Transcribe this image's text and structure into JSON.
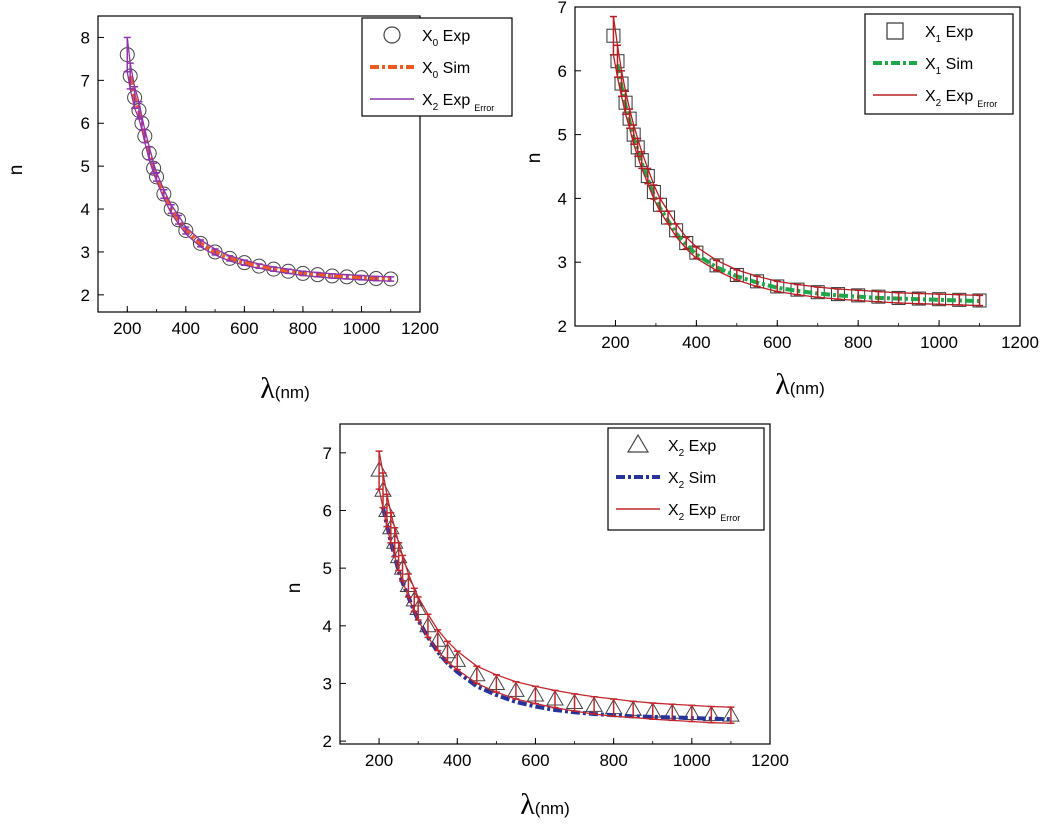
{
  "chart_data": [
    {
      "type": "scatter",
      "xlabel": "λ (nm)",
      "ylabel": "n",
      "xlim": [
        100,
        1200
      ],
      "ylim": [
        1.6,
        8.5
      ],
      "xticks": [
        200,
        400,
        600,
        800,
        1000,
        1200
      ],
      "yticks": [
        2,
        3,
        4,
        5,
        6,
        7,
        8
      ],
      "legend_position": "top-right",
      "legend": [
        {
          "base": "X",
          "sub": "0",
          "text": " Exp",
          "suffix": "",
          "marker": "circle",
          "color": "#444444"
        },
        {
          "base": "X",
          "sub": "0",
          "text": " Sim",
          "suffix": "",
          "marker": "dashdot",
          "color": "#f05a22"
        },
        {
          "base": "X",
          "sub": "2",
          "text": " Exp",
          "suffix": "Error",
          "marker": "line",
          "color": "#8e35a8"
        }
      ],
      "series": [
        {
          "name": "X0 Exp",
          "style": "circle",
          "color": "#444444",
          "x": [
            200,
            210,
            225,
            240,
            250,
            260,
            275,
            290,
            300,
            325,
            350,
            375,
            400,
            450,
            500,
            550,
            600,
            650,
            700,
            750,
            800,
            850,
            900,
            950,
            1000,
            1050,
            1100
          ],
          "y": [
            7.6,
            7.1,
            6.6,
            6.3,
            6.0,
            5.7,
            5.3,
            4.95,
            4.75,
            4.35,
            4.0,
            3.75,
            3.5,
            3.2,
            3.0,
            2.85,
            2.75,
            2.67,
            2.6,
            2.55,
            2.5,
            2.47,
            2.44,
            2.42,
            2.4,
            2.38,
            2.37
          ]
        },
        {
          "name": "X0 Sim",
          "style": "dashdot",
          "color": "#f05a22",
          "x": [
            210,
            225,
            240,
            250,
            260,
            275,
            290,
            300,
            325,
            350,
            375,
            400,
            450,
            500,
            550,
            600,
            650,
            700,
            750,
            800,
            850,
            900,
            950,
            1000,
            1050,
            1100
          ],
          "y": [
            7.1,
            6.6,
            6.3,
            6.0,
            5.7,
            5.3,
            4.95,
            4.75,
            4.35,
            4.0,
            3.75,
            3.5,
            3.2,
            3.0,
            2.85,
            2.75,
            2.67,
            2.6,
            2.55,
            2.5,
            2.47,
            2.44,
            2.42,
            2.4,
            2.38,
            2.37
          ]
        },
        {
          "name": "X2 Exp Error",
          "style": "errorbar",
          "color": "#8e35a8",
          "err": [
            0.4,
            0.3,
            0.25,
            0.2,
            0.15,
            0.15,
            0.15,
            0.12,
            0.1,
            0.1,
            0.1,
            0.1,
            0.08,
            0.08,
            0.07,
            0.06,
            0.06,
            0.05,
            0.05,
            0.05,
            0.05,
            0.05,
            0.05,
            0.05,
            0.05,
            0.05,
            0.05
          ],
          "x": [
            200,
            210,
            225,
            240,
            250,
            260,
            275,
            290,
            300,
            325,
            350,
            375,
            400,
            450,
            500,
            550,
            600,
            650,
            700,
            750,
            800,
            850,
            900,
            950,
            1000,
            1050,
            1100
          ],
          "y": [
            7.6,
            7.1,
            6.6,
            6.3,
            6.0,
            5.7,
            5.3,
            4.95,
            4.75,
            4.35,
            4.0,
            3.75,
            3.5,
            3.2,
            3.0,
            2.85,
            2.75,
            2.67,
            2.6,
            2.55,
            2.5,
            2.47,
            2.44,
            2.42,
            2.4,
            2.38,
            2.37
          ]
        }
      ]
    },
    {
      "type": "scatter",
      "xlabel": "λ (nm)",
      "ylabel": "n",
      "xlim": [
        100,
        1200
      ],
      "ylim": [
        2,
        7
      ],
      "xticks": [
        200,
        400,
        600,
        800,
        1000,
        1200
      ],
      "yticks": [
        2,
        3,
        4,
        5,
        6,
        7
      ],
      "legend_position": "top-right",
      "legend": [
        {
          "base": "X",
          "sub": "1",
          "text": " Exp",
          "suffix": "",
          "marker": "square",
          "color": "#333333"
        },
        {
          "base": "X",
          "sub": "1",
          "text": " Sim",
          "suffix": "",
          "marker": "dashdot",
          "color": "#1fa84a"
        },
        {
          "base": "X",
          "sub": "2",
          "text": " Exp",
          "suffix": "Error",
          "marker": "line",
          "color": "#b51f24"
        }
      ],
      "series": [
        {
          "name": "X1 Exp",
          "style": "square",
          "color": "#333333",
          "x": [
            195,
            205,
            215,
            225,
            235,
            245,
            255,
            265,
            280,
            295,
            310,
            330,
            350,
            375,
            400,
            450,
            500,
            550,
            600,
            650,
            700,
            750,
            800,
            850,
            900,
            950,
            1000,
            1050,
            1100
          ],
          "y": [
            6.55,
            6.15,
            5.8,
            5.5,
            5.25,
            5.0,
            4.8,
            4.6,
            4.35,
            4.1,
            3.9,
            3.7,
            3.5,
            3.3,
            3.15,
            2.95,
            2.8,
            2.7,
            2.62,
            2.57,
            2.53,
            2.5,
            2.48,
            2.46,
            2.44,
            2.43,
            2.42,
            2.41,
            2.4
          ]
        },
        {
          "name": "X1 Sim",
          "style": "dashdot",
          "color": "#1fa84a",
          "x": [
            205,
            215,
            225,
            235,
            245,
            255,
            265,
            280,
            295,
            310,
            330,
            350,
            375,
            400,
            450,
            500,
            550,
            600,
            650,
            700,
            750,
            800,
            850,
            900,
            950,
            1000,
            1050,
            1100
          ],
          "y": [
            6.1,
            5.75,
            5.45,
            5.2,
            4.95,
            4.75,
            4.55,
            4.3,
            4.05,
            3.85,
            3.65,
            3.45,
            3.27,
            3.12,
            2.92,
            2.78,
            2.68,
            2.6,
            2.55,
            2.51,
            2.48,
            2.46,
            2.44,
            2.43,
            2.42,
            2.41,
            2.4,
            2.39
          ]
        },
        {
          "name": "X2 Exp Error",
          "style": "errorbar",
          "color": "#b51f24",
          "err": [
            0.3,
            0.25,
            0.2,
            0.18,
            0.15,
            0.15,
            0.14,
            0.13,
            0.12,
            0.11,
            0.1,
            0.1,
            0.1,
            0.09,
            0.09,
            0.08,
            0.08,
            0.08,
            0.08,
            0.08,
            0.08,
            0.08,
            0.08,
            0.08,
            0.08,
            0.08,
            0.08,
            0.08,
            0.08
          ],
          "x": [
            195,
            205,
            215,
            225,
            235,
            245,
            255,
            265,
            280,
            295,
            310,
            330,
            350,
            375,
            400,
            450,
            500,
            550,
            600,
            650,
            700,
            750,
            800,
            850,
            900,
            950,
            1000,
            1050,
            1100
          ],
          "y": [
            6.55,
            6.15,
            5.8,
            5.5,
            5.25,
            5.0,
            4.8,
            4.6,
            4.35,
            4.1,
            3.9,
            3.7,
            3.5,
            3.3,
            3.15,
            2.95,
            2.8,
            2.7,
            2.62,
            2.57,
            2.53,
            2.5,
            2.48,
            2.46,
            2.44,
            2.43,
            2.42,
            2.41,
            2.4
          ]
        }
      ]
    },
    {
      "type": "scatter",
      "xlabel": "λ (nm)",
      "ylabel": "n",
      "xlim": [
        100,
        1200
      ],
      "ylim": [
        1.95,
        7.5
      ],
      "xticks": [
        200,
        400,
        600,
        800,
        1000,
        1200
      ],
      "yticks": [
        2,
        3,
        4,
        5,
        6,
        7
      ],
      "legend_position": "top-right",
      "legend": [
        {
          "base": "X",
          "sub": "2",
          "text": " Exp",
          "suffix": "",
          "marker": "triangle",
          "color": "#444444"
        },
        {
          "base": "X",
          "sub": "2",
          "text": " Sim",
          "suffix": "",
          "marker": "dashdot",
          "color": "#26349a"
        },
        {
          "base": "X",
          "sub": "2",
          "text": " Exp",
          "suffix": "Error",
          "marker": "line",
          "color": "#c1272d"
        }
      ],
      "series": [
        {
          "name": "X2 Exp",
          "style": "triangle",
          "color": "#444444",
          "x": [
            200,
            210,
            220,
            230,
            240,
            250,
            260,
            275,
            290,
            300,
            325,
            350,
            375,
            400,
            450,
            500,
            550,
            600,
            650,
            700,
            750,
            800,
            850,
            900,
            950,
            1000,
            1050,
            1100
          ],
          "y": [
            6.7,
            6.35,
            6.0,
            5.7,
            5.45,
            5.2,
            5.0,
            4.7,
            4.45,
            4.3,
            4.0,
            3.75,
            3.55,
            3.4,
            3.15,
            3.0,
            2.88,
            2.8,
            2.73,
            2.67,
            2.62,
            2.58,
            2.55,
            2.52,
            2.5,
            2.48,
            2.46,
            2.45
          ]
        },
        {
          "name": "X2 Sim",
          "style": "dashdot",
          "color": "#26349a",
          "x": [
            210,
            220,
            230,
            240,
            250,
            260,
            275,
            290,
            300,
            325,
            350,
            375,
            400,
            450,
            500,
            550,
            600,
            650,
            700,
            750,
            800,
            850,
            900,
            950,
            1000,
            1050,
            1100
          ],
          "y": [
            6.05,
            5.75,
            5.45,
            5.2,
            4.95,
            4.75,
            4.5,
            4.25,
            4.1,
            3.8,
            3.55,
            3.35,
            3.2,
            2.95,
            2.8,
            2.68,
            2.6,
            2.54,
            2.5,
            2.47,
            2.45,
            2.43,
            2.42,
            2.41,
            2.4,
            2.39,
            2.38
          ]
        },
        {
          "name": "X2 Exp Error",
          "style": "errorbar",
          "color": "#c1272d",
          "err": [
            0.33,
            0.3,
            0.28,
            0.26,
            0.25,
            0.24,
            0.22,
            0.2,
            0.2,
            0.2,
            0.2,
            0.18,
            0.18,
            0.16,
            0.15,
            0.15,
            0.15,
            0.15,
            0.15,
            0.15,
            0.15,
            0.15,
            0.14,
            0.14,
            0.14,
            0.14,
            0.14,
            0.14
          ],
          "x": [
            200,
            210,
            220,
            230,
            240,
            250,
            260,
            275,
            290,
            300,
            325,
            350,
            375,
            400,
            450,
            500,
            550,
            600,
            650,
            700,
            750,
            800,
            850,
            900,
            950,
            1000,
            1050,
            1100
          ],
          "y": [
            6.7,
            6.35,
            6.0,
            5.7,
            5.45,
            5.2,
            5.0,
            4.7,
            4.45,
            4.3,
            4.0,
            3.75,
            3.55,
            3.4,
            3.15,
            3.0,
            2.88,
            2.8,
            2.73,
            2.67,
            2.62,
            2.58,
            2.55,
            2.52,
            2.5,
            2.48,
            2.46,
            2.45
          ]
        }
      ]
    }
  ]
}
